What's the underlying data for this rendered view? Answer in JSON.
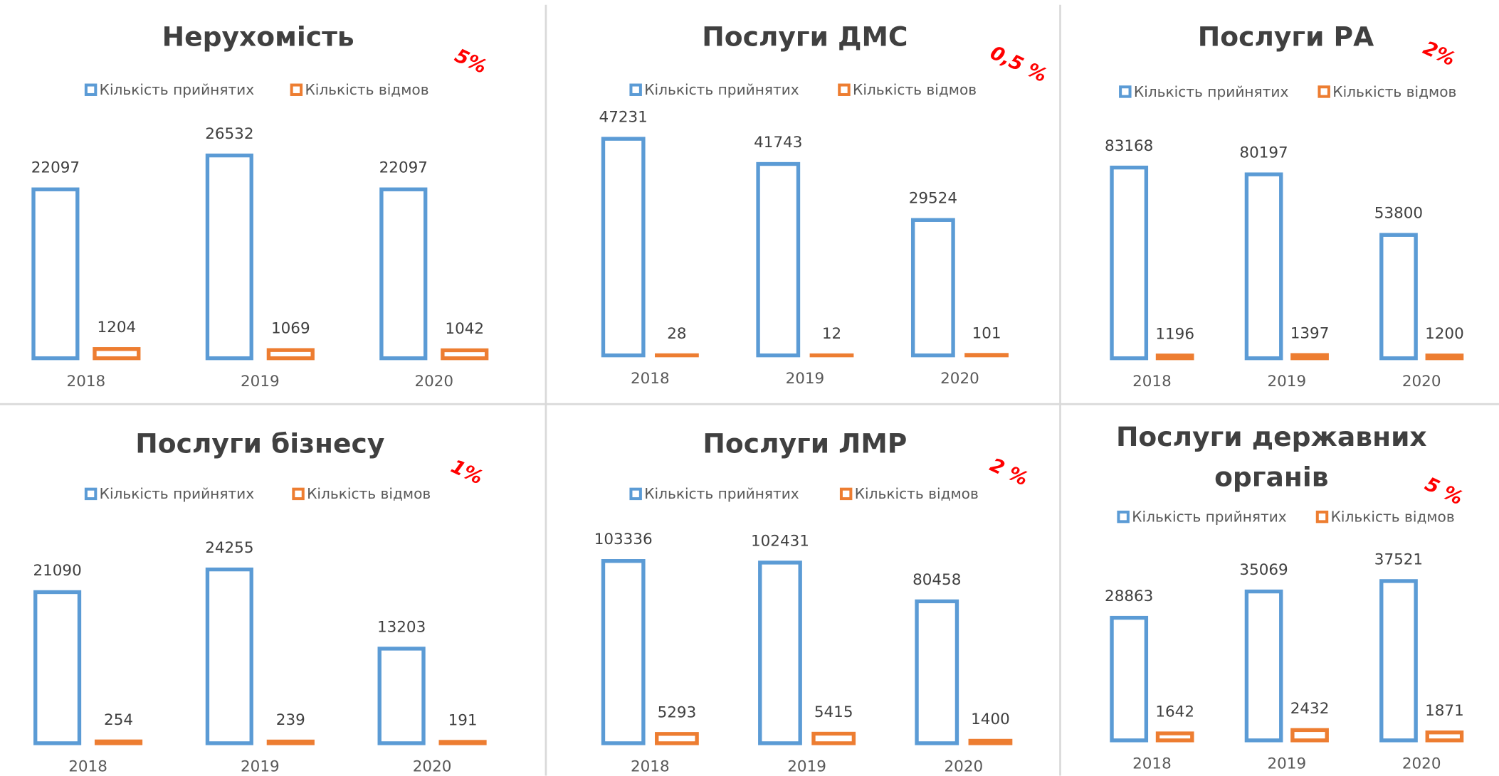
{
  "chart_data": [
    {
      "type": "bar",
      "title": "Нерухомість",
      "annotation": "5%",
      "categories": [
        "2018",
        "2019",
        "2020"
      ],
      "series": [
        {
          "name": "Кількість прийнятих",
          "color": "#5b9bd5",
          "values": [
            22097,
            26532,
            22097
          ]
        },
        {
          "name": "Кількість відмов",
          "color": "#ed7d31",
          "values": [
            1204,
            1069,
            1042
          ]
        }
      ],
      "ylim": [
        0,
        30000
      ]
    },
    {
      "type": "bar",
      "title": "Послуги ДМС",
      "annotation": "0,5 %",
      "categories": [
        "2018",
        "2019",
        "2020"
      ],
      "series": [
        {
          "name": "Кількість прийнятих",
          "color": "#5b9bd5",
          "values": [
            47231,
            41743,
            29524
          ]
        },
        {
          "name": "Кількість відмов",
          "color": "#ed7d31",
          "values": [
            28,
            12,
            101
          ]
        }
      ],
      "ylim": [
        0,
        50000
      ]
    },
    {
      "type": "bar",
      "title": "Послуги РА",
      "annotation": "2%",
      "categories": [
        "2018",
        "2019",
        "2020"
      ],
      "series": [
        {
          "name": "Кількість прийнятих",
          "color": "#5b9bd5",
          "values": [
            83168,
            80197,
            53800
          ]
        },
        {
          "name": "Кількість відмов",
          "color": "#ed7d31",
          "values": [
            1196,
            1397,
            1200
          ]
        }
      ],
      "ylim": [
        0,
        100000
      ]
    },
    {
      "type": "bar",
      "title": "Послуги бізнесу",
      "annotation": "1%",
      "categories": [
        "2018",
        "2019",
        "2020"
      ],
      "series": [
        {
          "name": "Кількість прийнятих",
          "color": "#5b9bd5",
          "values": [
            21090,
            24255,
            13203
          ]
        },
        {
          "name": "Кількість відмов",
          "color": "#ed7d31",
          "values": [
            254,
            239,
            191
          ]
        }
      ],
      "ylim": [
        0,
        32000
      ]
    },
    {
      "type": "bar",
      "title": "Послуги ЛМР",
      "annotation": "2 %",
      "categories": [
        "2018",
        "2019",
        "2020"
      ],
      "series": [
        {
          "name": "Кількість прийнятих",
          "color": "#5b9bd5",
          "values": [
            103336,
            102431,
            80458
          ]
        },
        {
          "name": "Кількість відмов",
          "color": "#ed7d31",
          "values": [
            5293,
            5415,
            1400
          ]
        }
      ],
      "ylim": [
        0,
        130000
      ]
    },
    {
      "type": "bar",
      "title": "Послуги державних органів",
      "annotation": "5 %",
      "categories": [
        "2018",
        "2019",
        "2020"
      ],
      "series": [
        {
          "name": "Кількість прийнятих",
          "color": "#5b9bd5",
          "values": [
            28863,
            35069,
            37521
          ]
        },
        {
          "name": "Кількість відмов",
          "color": "#ed7d31",
          "values": [
            1642,
            2432,
            1871
          ]
        }
      ],
      "ylim": [
        0,
        54000
      ]
    }
  ]
}
